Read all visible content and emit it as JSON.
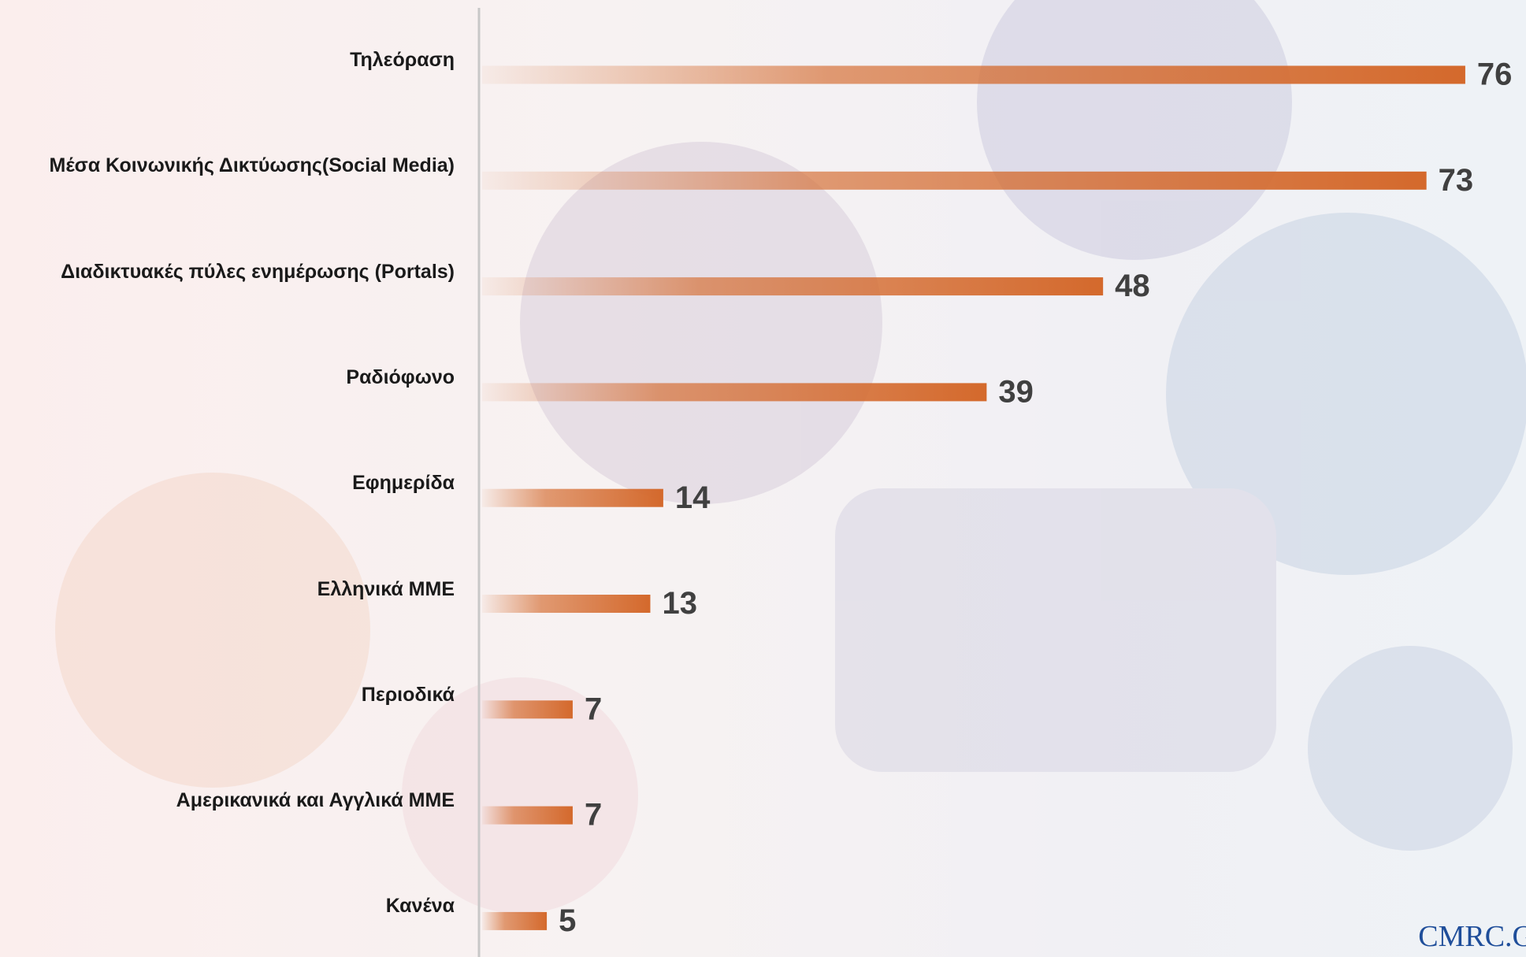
{
  "chart_data": {
    "type": "bar",
    "orientation": "horizontal",
    "categories": [
      "Τηλεόραση",
      "Μέσα Κοινωνικής Δικτύωσης(Social Media)",
      "Διαδικτυακές πύλες ενημέρωσης (Portals)",
      "Ραδιόφωνο",
      "Εφημερίδα",
      "Ελληνικά ΜΜΕ",
      "Περιοδικά",
      "Αμερικανικά και Αγγλικά ΜΜΕ",
      "Κανένα"
    ],
    "values": [
      76,
      73,
      48,
      39,
      14,
      13,
      7,
      7,
      5
    ],
    "color": "#d4692c"
  },
  "logo": "CMRC.G"
}
